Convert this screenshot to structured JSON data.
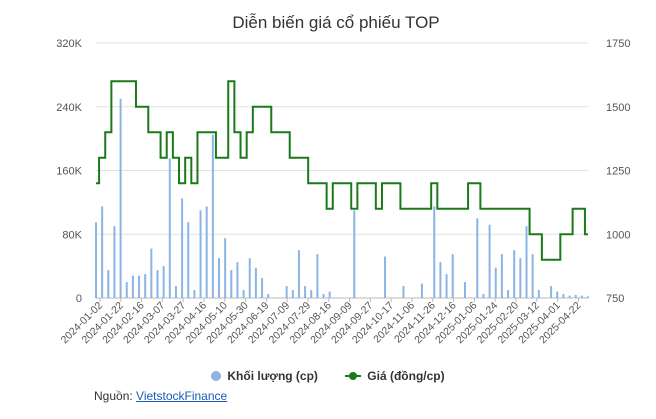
{
  "chart_data": {
    "type": "bar+line",
    "title": "Diễn biến giá cổ phiếu TOP",
    "x_labels": [
      "2024-01-02",
      "2024-01-22",
      "2024-02-16",
      "2024-03-07",
      "2024-03-27",
      "2024-04-16",
      "2024-05-10",
      "2024-05-30",
      "2024-06-19",
      "2024-07-09",
      "2024-07-29",
      "2024-08-16",
      "2024-09-09",
      "2024-09-27",
      "2024-10-17",
      "2024-11-06",
      "2024-11-26",
      "2024-12-16",
      "2025-01-06",
      "2025-01-24",
      "2025-02-20",
      "2025-03-12",
      "2025-04-01",
      "2025-04-22"
    ],
    "y_left": {
      "ticks": [
        "0",
        "80K",
        "160K",
        "240K",
        "320K"
      ],
      "min": 0,
      "max": 320000
    },
    "y_right": {
      "ticks": [
        "750",
        "1000",
        "1250",
        "1500",
        "1750"
      ],
      "min": 750,
      "max": 1750
    },
    "num_points": 81,
    "series": [
      {
        "name": "Khối lượng (cp)",
        "type": "bar",
        "axis": "left",
        "values": [
          95000,
          115000,
          35000,
          90000,
          250000,
          20000,
          28000,
          28000,
          30000,
          62000,
          35000,
          40000,
          175000,
          15000,
          125000,
          95000,
          10000,
          110000,
          115000,
          205000,
          50000,
          75000,
          35000,
          45000,
          10000,
          50000,
          38000,
          25000,
          5000,
          0,
          0,
          15000,
          10000,
          60000,
          15000,
          10000,
          55000,
          5000,
          8000,
          0,
          0,
          0,
          110000,
          0,
          0,
          0,
          0,
          52000,
          0,
          0,
          15000,
          0,
          0,
          18000,
          0,
          115000,
          45000,
          30000,
          55000,
          0,
          20000,
          0,
          100000,
          5000,
          92000,
          38000,
          55000,
          10000,
          60000,
          50000,
          90000,
          55000,
          10000,
          0,
          15000,
          8000,
          5000,
          3000,
          4000,
          3000,
          2000
        ]
      },
      {
        "name": "Giá (đồng/cp)",
        "type": "line",
        "axis": "right",
        "values": [
          1200,
          1300,
          1400,
          1600,
          1600,
          1600,
          1600,
          1500,
          1500,
          1400,
          1400,
          1300,
          1400,
          1300,
          1200,
          1300,
          1200,
          1400,
          1400,
          1400,
          1300,
          1300,
          1600,
          1400,
          1300,
          1400,
          1500,
          1500,
          1500,
          1400,
          1400,
          1400,
          1300,
          1300,
          1300,
          1200,
          1200,
          1200,
          1100,
          1200,
          1200,
          1200,
          1100,
          1200,
          1200,
          1200,
          1100,
          1200,
          1200,
          1200,
          1100,
          1100,
          1100,
          1100,
          1100,
          1200,
          1100,
          1100,
          1100,
          1100,
          1100,
          1200,
          1200,
          1100,
          1100,
          1100,
          1100,
          1100,
          1100,
          1100,
          1100,
          1000,
          1000,
          900,
          900,
          900,
          1000,
          1000,
          1100,
          1100,
          1000
        ]
      }
    ],
    "colors": {
      "bar": "#8ab4e6",
      "line": "#1a7a1a",
      "grid": "#e2e2e2"
    },
    "legend_position": "bottom",
    "grid": true
  },
  "source": {
    "label": "Nguồn:",
    "link_text": "VietstockFinance"
  }
}
